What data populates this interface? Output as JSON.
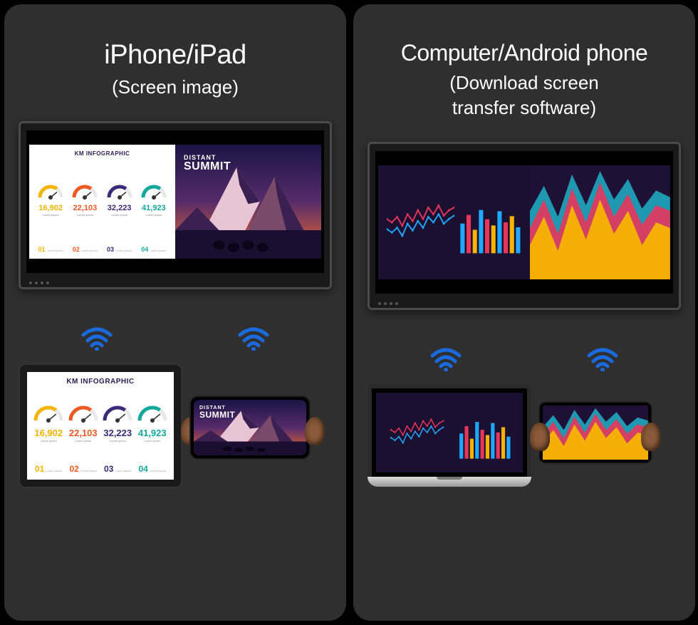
{
  "left": {
    "title": "iPhone/iPad",
    "subtitle": "(Screen image)",
    "infographic": {
      "header": "KM INFOGRAPHIC",
      "gauges": [
        {
          "value": "16,902",
          "color": "#f5b400",
          "sub": "Lorem ipsum"
        },
        {
          "value": "22,103",
          "color": "#ed5a23",
          "sub": "Lorem ipsum"
        },
        {
          "value": "32,223",
          "color": "#3a2a7a",
          "sub": "Lorem ipsum"
        },
        {
          "value": "41,923",
          "color": "#12a89e",
          "sub": "Lorem ipsum"
        }
      ],
      "footers": [
        {
          "num": "01",
          "color": "#f5b400",
          "label": "Lorem ipsum"
        },
        {
          "num": "02",
          "color": "#ed5a23",
          "label": "Lorem ipsum"
        },
        {
          "num": "03",
          "color": "#3a2a7a",
          "label": "Lorem ipsum"
        },
        {
          "num": "04",
          "color": "#12a89e",
          "label": "Lorem ipsum"
        }
      ]
    },
    "summit": {
      "pre": "DISTANT",
      "main": "SUMMIT",
      "sky_top": "#1a1545",
      "sky_mid": "#572b6b",
      "sky_low": "#c85a3a",
      "mtn_snow": "#e8c5d5",
      "mtn_shadow": "#3a2050",
      "mtn_mid": "#7a4a6a",
      "ground": "#1a0f30"
    }
  },
  "right": {
    "title": "Computer/Android phone",
    "subtitle": "(Download screen\ntransfer software)",
    "darkcharts": {
      "bg": "#1b1030",
      "line_series": {
        "a_color": "#1fa8ff",
        "b_color": "#e8365a",
        "a": [
          40,
          35,
          42,
          30,
          48,
          38,
          52,
          42,
          58,
          50,
          62,
          48,
          55,
          60
        ],
        "b": [
          55,
          50,
          58,
          45,
          62,
          52,
          68,
          55,
          72,
          62,
          75,
          60,
          68,
          72
        ]
      },
      "bars": {
        "colors": [
          "#1fa8ff",
          "#e8365a",
          "#f5b400",
          "#1fa8ff",
          "#e8365a",
          "#f5b400",
          "#1fa8ff",
          "#e8365a",
          "#f5b400",
          "#1fa8ff"
        ],
        "heights": [
          48,
          62,
          38,
          70,
          55,
          45,
          68,
          50,
          60,
          42
        ]
      }
    },
    "areachart": {
      "bg": "#1f1135",
      "series": [
        {
          "color": "#f5b400",
          "opacity": 0.95,
          "points": [
            30,
            55,
            25,
            65,
            35,
            70,
            40,
            60,
            30,
            50,
            45
          ]
        },
        {
          "color": "#e8365a",
          "opacity": 0.9,
          "points": [
            45,
            70,
            40,
            80,
            50,
            85,
            55,
            75,
            48,
            65,
            60
          ]
        },
        {
          "color": "#1fa8c0",
          "opacity": 0.9,
          "points": [
            60,
            82,
            55,
            92,
            65,
            95,
            70,
            88,
            62,
            78,
            72
          ]
        }
      ]
    }
  },
  "wifi_color": "#1a6adb"
}
